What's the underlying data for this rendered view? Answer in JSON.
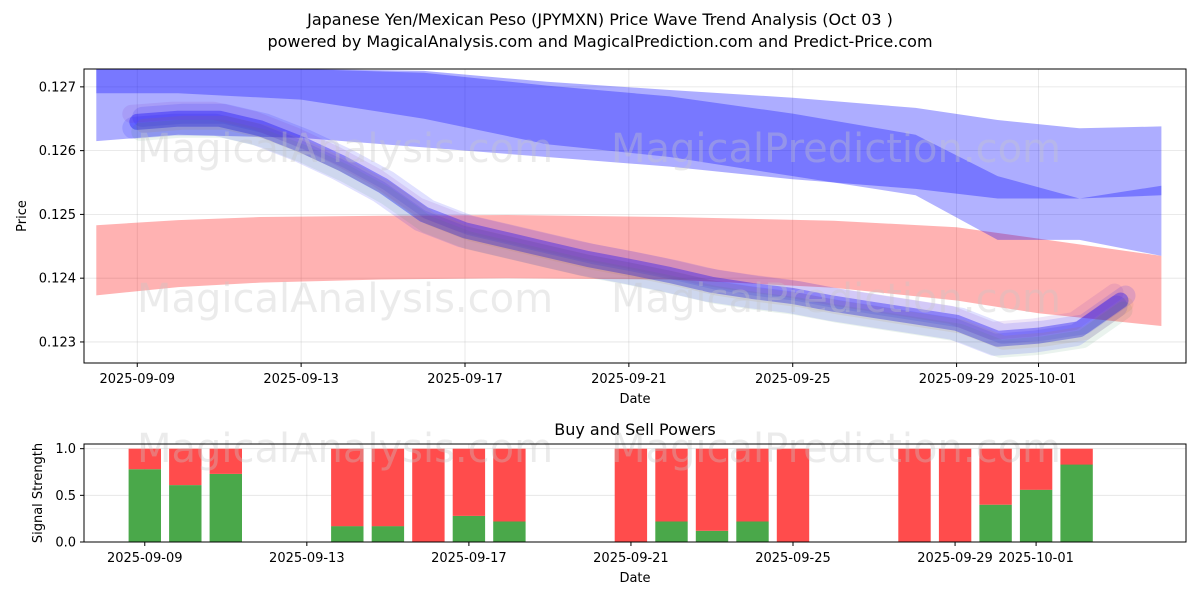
{
  "title_line1": "Japanese Yen/Mexican Peso (JPYMXN) Price Wave Trend Analysis (Oct 03 )",
  "title_line2": "powered by MagicalAnalysis.com and MagicalPrediction.com and Predict-Price.com",
  "watermarks": [
    "MagicalAnalysis.com",
    "MagicalPrediction.com"
  ],
  "chart_data": [
    {
      "type": "area",
      "title": "",
      "xlabel": "Date",
      "ylabel": "Price",
      "xlim": [
        "2025-09-07.7",
        "2025-10-04.6"
      ],
      "ylim": [
        0.12267,
        0.12728
      ],
      "x_ticks": [
        "2025-09-09",
        "2025-09-13",
        "2025-09-17",
        "2025-09-21",
        "2025-09-25",
        "2025-09-29",
        "2025-10-01"
      ],
      "y_ticks": [
        "0.123",
        "0.124",
        "0.125",
        "0.126",
        "0.127"
      ],
      "grid": true,
      "bands": [
        {
          "color": "#ff0000",
          "opacity": 0.3,
          "x": [
            "2025-09-08",
            "2025-09-10",
            "2025-09-12",
            "2025-09-15",
            "2025-09-18",
            "2025-09-22",
            "2025-09-26",
            "2025-09-29",
            "2025-10-01",
            "2025-10-04"
          ],
          "upper": [
            0.12483,
            0.12491,
            0.12496,
            0.12498,
            0.12499,
            0.12496,
            0.1249,
            0.1248,
            0.12462,
            0.12435
          ],
          "lower": [
            0.12373,
            0.12386,
            0.12393,
            0.12398,
            0.124,
            0.12398,
            0.12385,
            0.12365,
            0.12345,
            0.12325
          ]
        },
        {
          "color": "#0000ff",
          "opacity": 0.32,
          "x": [
            "2025-09-08",
            "2025-09-10",
            "2025-09-13",
            "2025-09-16",
            "2025-09-19",
            "2025-09-22",
            "2025-09-25",
            "2025-09-28",
            "2025-09-30",
            "2025-10-02",
            "2025-10-04"
          ],
          "upper": [
            0.1273,
            0.1273,
            0.1273,
            0.12725,
            0.12708,
            0.12695,
            0.12683,
            0.12667,
            0.12648,
            0.12635,
            0.12638
          ],
          "lower": [
            0.12615,
            0.12625,
            0.1262,
            0.12605,
            0.1259,
            0.12575,
            0.12555,
            0.1254,
            0.12525,
            0.12525,
            0.1253
          ]
        },
        {
          "color": "#0000ff",
          "opacity": 0.3,
          "x": [
            "2025-09-08",
            "2025-09-10",
            "2025-09-13",
            "2025-09-16",
            "2025-09-19",
            "2025-09-22",
            "2025-09-25",
            "2025-09-28",
            "2025-09-30",
            "2025-10-02",
            "2025-10-04"
          ],
          "upper": [
            0.1273,
            0.1273,
            0.1273,
            0.12722,
            0.12702,
            0.12685,
            0.12658,
            0.12625,
            0.1256,
            0.12525,
            0.12545
          ],
          "lower": [
            0.1269,
            0.1269,
            0.1268,
            0.1265,
            0.1261,
            0.1259,
            0.1256,
            0.1253,
            0.1246,
            0.1246,
            0.12435
          ]
        }
      ],
      "series": [
        {
          "color": "#0000ff",
          "x": [
            "2025-09-09",
            "2025-09-10",
            "2025-09-11",
            "2025-09-12",
            "2025-09-13",
            "2025-09-14",
            "2025-09-15",
            "2025-09-16",
            "2025-09-17",
            "2025-09-18",
            "2025-09-19",
            "2025-09-20",
            "2025-09-21",
            "2025-09-22",
            "2025-09-23",
            "2025-09-24",
            "2025-09-25",
            "2025-09-26",
            "2025-09-27",
            "2025-09-28",
            "2025-09-29",
            "2025-09-30",
            "2025-10-01",
            "2025-10-02",
            "2025-10-03"
          ],
          "y": [
            0.12645,
            0.1265,
            0.1265,
            0.12635,
            0.1261,
            0.1258,
            0.12545,
            0.125,
            0.12475,
            0.1246,
            0.12445,
            0.1243,
            0.12418,
            0.12405,
            0.1239,
            0.1238,
            0.12372,
            0.1236,
            0.1235,
            0.1234,
            0.1233,
            0.12305,
            0.1231,
            0.1232,
            0.12365
          ]
        }
      ]
    },
    {
      "type": "bar",
      "title": "Buy and Sell Powers",
      "xlabel": "Date",
      "ylabel": "Signal Strength",
      "xlim": [
        "2025-09-07.5",
        "2025-10-04.7"
      ],
      "ylim": [
        0,
        1.05
      ],
      "x_ticks": [
        "2025-09-09",
        "2025-09-13",
        "2025-09-17",
        "2025-09-21",
        "2025-09-25",
        "2025-09-29",
        "2025-10-01"
      ],
      "y_ticks": [
        "0.0",
        "0.5",
        "1.0"
      ],
      "grid": true,
      "colors": {
        "buy": "#4aa84a",
        "sell": "#ff4c4c"
      },
      "categories": [
        "2025-09-09",
        "2025-09-10",
        "2025-09-11",
        "2025-09-14",
        "2025-09-15",
        "2025-09-16",
        "2025-09-17",
        "2025-09-18",
        "2025-09-21",
        "2025-09-22",
        "2025-09-23",
        "2025-09-24",
        "2025-09-25",
        "2025-09-28",
        "2025-09-29",
        "2025-09-30",
        "2025-10-01",
        "2025-10-02"
      ],
      "buy": [
        0.78,
        0.61,
        0.73,
        0.17,
        0.17,
        0.0,
        0.28,
        0.22,
        0.0,
        0.22,
        0.12,
        0.22,
        0.0,
        0.0,
        0.0,
        0.4,
        0.56,
        0.83
      ],
      "sell": [
        0.22,
        0.39,
        0.27,
        0.83,
        0.83,
        1.0,
        0.72,
        0.78,
        1.0,
        0.78,
        0.88,
        0.78,
        1.0,
        1.0,
        1.0,
        0.6,
        0.44,
        0.17
      ]
    }
  ]
}
